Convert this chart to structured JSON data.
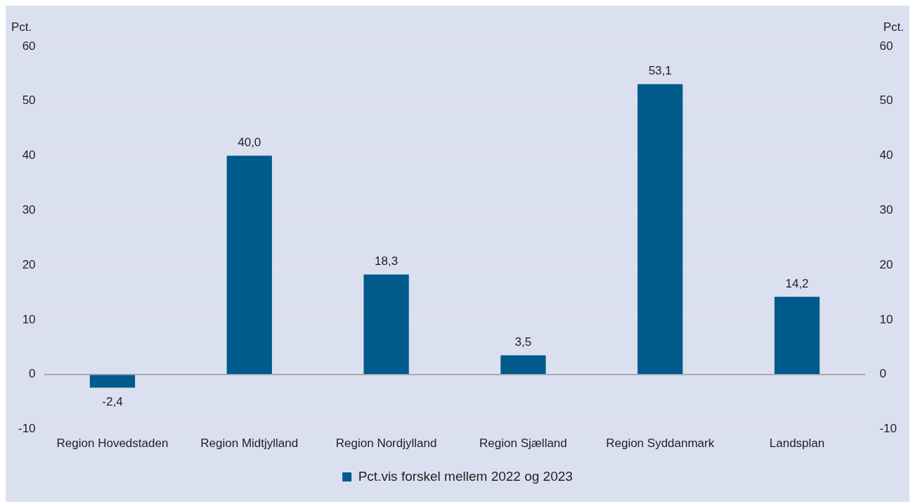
{
  "chart_data": {
    "type": "bar",
    "ylabel": "Pct.",
    "y2label": "Pct.",
    "categories": [
      "Region Hovedstaden",
      "Region Midtjylland",
      "Region Nordjylland",
      "Region Sjælland",
      "Region Syddanmark",
      "Landsplan"
    ],
    "series": [
      {
        "name": "Pct.vis forskel mellem 2022 og 2023",
        "color": "#005a8c",
        "values": [
          -2.4,
          40.0,
          18.3,
          3.5,
          53.1,
          14.2
        ],
        "value_labels": [
          "-2,4",
          "40,0",
          "18,3",
          "3,5",
          "53,1",
          "14,2"
        ]
      }
    ],
    "ylim": [
      -10,
      60
    ],
    "yticks": [
      -10,
      0,
      10,
      20,
      30,
      40,
      50,
      60
    ],
    "y2lim": [
      -10,
      60
    ],
    "y2ticks": [
      -10,
      0,
      10,
      20,
      30,
      40,
      50,
      60
    ],
    "grid": "y",
    "legend": "bottom"
  }
}
